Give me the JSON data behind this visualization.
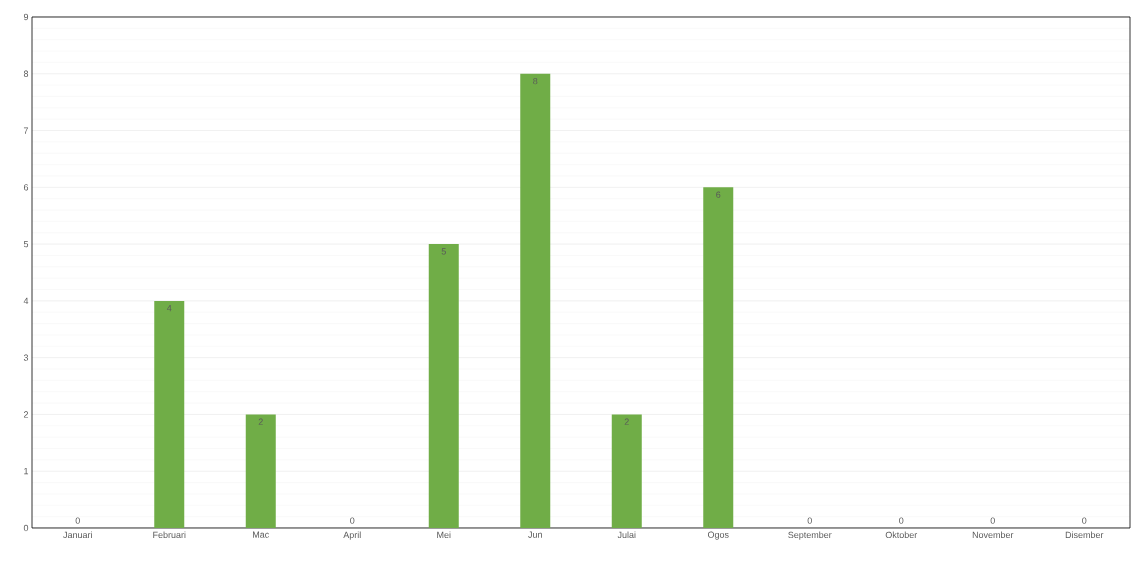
{
  "chart_data": {
    "type": "bar",
    "categories": [
      "Januari",
      "Februari",
      "Mac",
      "April",
      "Mei",
      "Jun",
      "Julai",
      "Ogos",
      "September",
      "Oktober",
      "November",
      "Disember"
    ],
    "values": [
      0,
      4,
      2,
      0,
      5,
      8,
      2,
      6,
      0,
      0,
      0,
      0
    ],
    "color": "#70ad47",
    "ylim": [
      0,
      9
    ],
    "yticks": [
      0,
      1,
      2,
      3,
      4,
      5,
      6,
      7,
      8,
      9
    ],
    "grid": "y",
    "data_labels": true
  }
}
